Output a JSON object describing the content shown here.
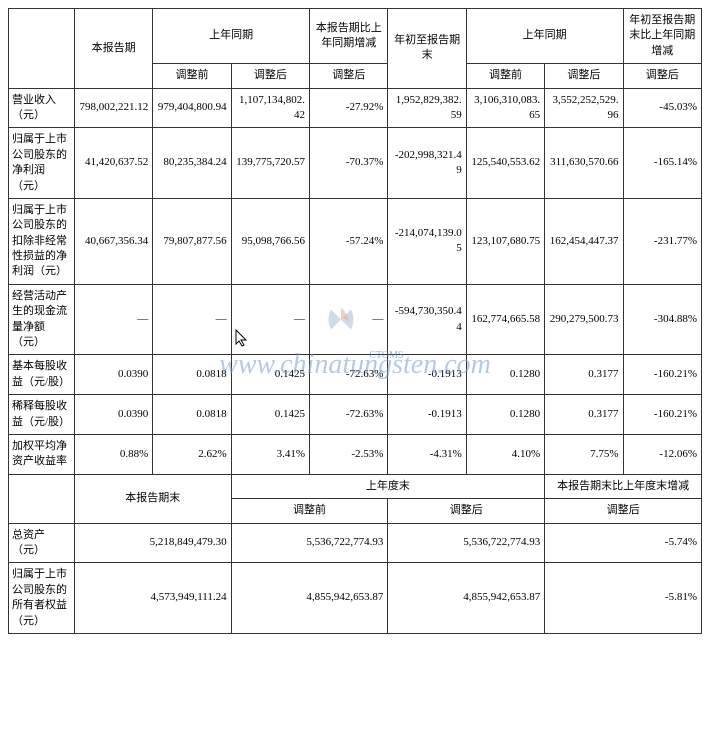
{
  "table1": {
    "header": {
      "col1": "",
      "col2": "本报告期",
      "col3": "上年同期",
      "col4": "本报告期比上年同期增减",
      "col5": "年初至报告期末",
      "col6": "上年同期",
      "col7": "年初至报告期末比上年同期增减",
      "sub_before": "调整前",
      "sub_after": "调整后"
    },
    "rows": [
      {
        "label": "营业收入（元）",
        "c1": "798,002,221.12",
        "c2": "979,404,800.94",
        "c3": "1,107,134,802.42",
        "c4": "-27.92%",
        "c5": "1,952,829,382.59",
        "c6": "3,106,310,083.65",
        "c7": "3,552,252,529.96",
        "c8": "-45.03%"
      },
      {
        "label": "归属于上市公司股东的净利润（元）",
        "c1": "41,420,637.52",
        "c2": "80,235,384.24",
        "c3": "139,775,720.57",
        "c4": "-70.37%",
        "c5": "-202,998,321.49",
        "c6": "125,540,553.62",
        "c7": "311,630,570.66",
        "c8": "-165.14%"
      },
      {
        "label": "归属于上市公司股东的扣除非经常性损益的净利润（元）",
        "c1": "40,667,356.34",
        "c2": "79,807,877.56",
        "c3": "95,098,766.56",
        "c4": "-57.24%",
        "c5": "-214,074,139.05",
        "c6": "123,107,680.75",
        "c7": "162,454,447.37",
        "c8": "-231.77%"
      },
      {
        "label": "经营活动产生的现金流量净额（元）",
        "c1": "—",
        "c2": "—",
        "c3": "—",
        "c4": "—",
        "c5": "-594,730,350.44",
        "c6": "162,774,665.58",
        "c7": "290,279,500.73",
        "c8": "-304.88%"
      },
      {
        "label": "基本每股收益（元/股）",
        "c1": "0.0390",
        "c2": "0.0818",
        "c3": "0.1425",
        "c4": "-72.63%",
        "c5": "-0.1913",
        "c6": "0.1280",
        "c7": "0.3177",
        "c8": "-160.21%"
      },
      {
        "label": "稀释每股收益（元/股）",
        "c1": "0.0390",
        "c2": "0.0818",
        "c3": "0.1425",
        "c4": "-72.63%",
        "c5": "-0.1913",
        "c6": "0.1280",
        "c7": "0.3177",
        "c8": "-160.21%"
      },
      {
        "label": "加权平均净资产收益率",
        "c1": "0.88%",
        "c2": "2.62%",
        "c3": "3.41%",
        "c4": "-2.53%",
        "c5": "-4.31%",
        "c6": "4.10%",
        "c7": "7.75%",
        "c8": "-12.06%"
      }
    ]
  },
  "table2": {
    "header": {
      "col1": "",
      "col2": "本报告期末",
      "col3": "上年度末",
      "col4": "本报告期末比上年度末增减",
      "sub_before": "调整前",
      "sub_after": "调整后"
    },
    "rows": [
      {
        "label": "总资产（元）",
        "c1": "5,218,849,479.30",
        "c2": "5,536,722,774.93",
        "c3": "5,536,722,774.93",
        "c4": "-5.74%"
      },
      {
        "label": "归属于上市公司股东的所有者权益（元）",
        "c1": "4,573,949,111.24",
        "c2": "4,855,942,653.87",
        "c3": "4,855,942,653.87",
        "c4": "-5.81%"
      }
    ]
  },
  "watermark_text": "www.chinatungsten.com",
  "watermark_label": "CTOMS",
  "colors": {
    "border": "#333333",
    "text": "#000000",
    "watermark": "#7a9dd4",
    "background": "#ffffff"
  },
  "col_widths": {
    "label": "9.5%",
    "data": "11.3%"
  }
}
